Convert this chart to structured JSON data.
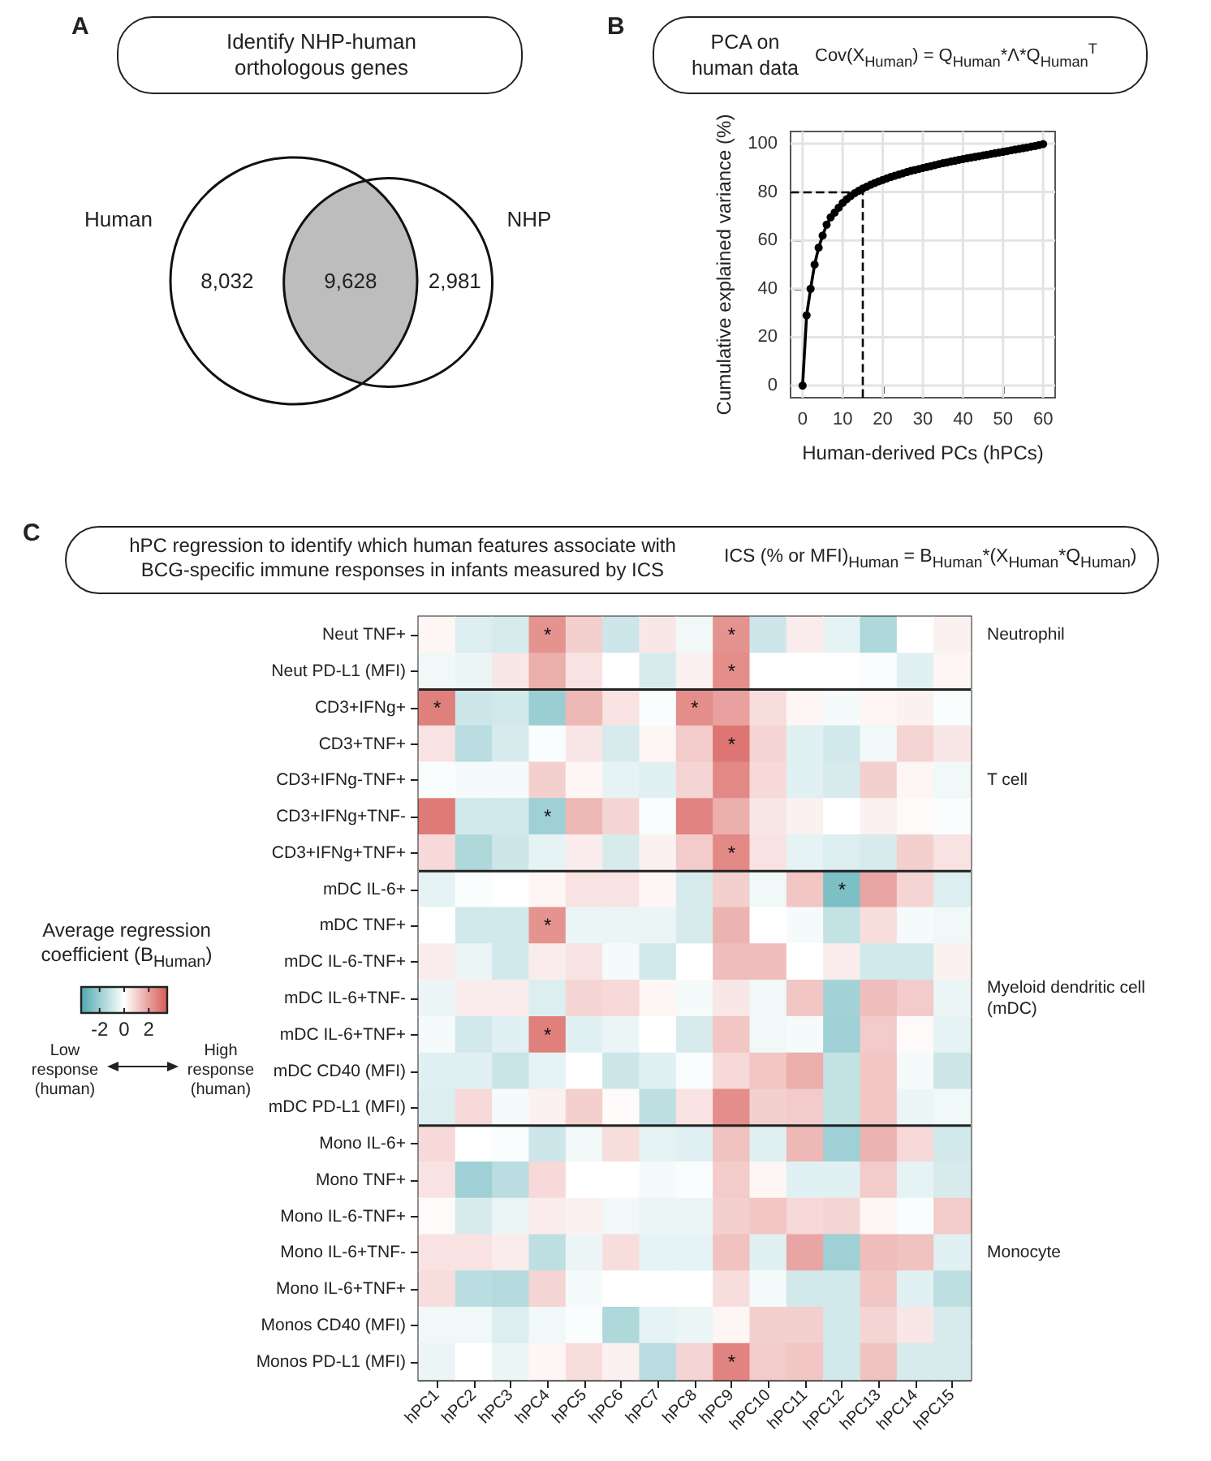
{
  "chart_data": [
    {
      "type": "other",
      "title": "Identify NHP-human orthologous genes",
      "annotations": [
        "A"
      ],
      "categories": [
        "Human",
        null,
        "NHP"
      ],
      "values": [
        8032,
        9628,
        2981
      ],
      "value_labels": [
        "8,032",
        "9,628",
        "2,981"
      ],
      "colors": [
        "#ffffff",
        "#bdbdbd",
        "#ffffff"
      ]
    },
    {
      "type": "line",
      "title": "PCA on human data",
      "subtitle": "Cov(X$_{Human}$) = Q$_{Human}$*Λ*Q$_{Human}$$^{T}$",
      "annotations": [
        "B"
      ],
      "xlabel": "Human-derived PCs (hPCs)",
      "ylabel": "Cumulative explained variance (%)",
      "x": [
        0,
        1,
        2,
        3,
        4,
        5,
        6,
        7,
        8,
        9,
        10,
        11,
        12,
        13,
        14,
        15,
        16,
        17,
        18,
        19,
        20,
        21,
        22,
        23,
        24,
        25,
        26,
        27,
        28,
        29,
        30,
        31,
        32,
        33,
        34,
        35,
        36,
        37,
        38,
        39,
        40,
        41,
        42,
        43,
        44,
        45,
        46,
        47,
        48,
        49,
        50,
        51,
        52,
        53,
        54,
        55,
        56,
        57,
        58,
        59,
        60
      ],
      "series": [
        {
          "color": "#000000",
          "values": [
            0,
            29,
            40,
            50,
            57,
            62,
            66.5,
            69.5,
            71.5,
            73.5,
            75.5,
            77,
            78.3,
            79.5,
            80.5,
            81.4,
            82.2,
            83,
            83.7,
            84.4,
            85,
            85.6,
            86.2,
            86.7,
            87.2,
            87.7,
            88.2,
            88.7,
            89.1,
            89.5,
            89.9,
            90.3,
            90.7,
            91.1,
            91.5,
            91.9,
            92.2,
            92.6,
            92.9,
            93.3,
            93.6,
            93.9,
            94.2,
            94.5,
            94.8,
            95.1,
            95.4,
            95.7,
            96,
            96.3,
            96.6,
            96.9,
            97.2,
            97.5,
            97.8,
            98.1,
            98.4,
            98.7,
            99,
            99.4,
            99.8
          ]
        }
      ],
      "xlim": [
        -3,
        63
      ],
      "ylim": [
        -5,
        105
      ],
      "xticks": [
        0,
        10,
        20,
        30,
        40,
        50,
        60
      ],
      "yticks": [
        0,
        20,
        40,
        60,
        80,
        100
      ],
      "grid": true,
      "marker": "circle",
      "ref_lines": [
        {
          "axis": "x",
          "value": 15,
          "line_style": "dashed"
        },
        {
          "axis": "y",
          "value": 80,
          "line_style": "dashed"
        }
      ]
    },
    {
      "type": "heatmap",
      "title": "hPC regression to identify which human features associate with BCG-specific immune responses in infants measured by ICS",
      "subtitle": "ICS (% or MFI)$_{Human}$ = B$_{Human}$*(X$_{Human}$*Q$_{Human}$)",
      "annotations": [
        "C",
        "Low response (human)",
        "High response (human)"
      ],
      "clabel": "Average regression coefficient (B$_{Human}$)",
      "clim": [
        -3.5,
        3.5
      ],
      "cticks": [
        -2,
        0,
        2
      ],
      "categories": [
        "hPC1",
        "hPC2",
        "hPC3",
        "hPC4",
        "hPC5",
        "hPC6",
        "hPC7",
        "hPC8",
        "hPC9",
        "hPC10",
        "hPC11",
        "hPC12",
        "hPC13",
        "hPC14",
        "hPC15"
      ],
      "y_categories": [
        "Neut TNF+",
        "Neut PD-L1 (MFI)",
        "CD3+IFNg+",
        "CD3+TNF+",
        "CD3+IFNg-TNF+",
        "CD3+IFNg+TNF-",
        "CD3+IFNg+TNF+",
        "mDC IL-6+",
        "mDC TNF+",
        "mDC IL-6-TNF+",
        "mDC IL-6+TNF-",
        "mDC IL-6+TNF+",
        "mDC CD40 (MFI)",
        "mDC PD-L1 (MFI)",
        "Mono IL-6+",
        "Mono TNF+",
        "Mono IL-6-TNF+",
        "Mono IL-6+TNF-",
        "Mono IL-6+TNF+",
        "Monos CD40 (MFI)",
        "Monos PD-L1 (MFI)"
      ],
      "y2_categories": [
        "Neutrophil",
        null,
        null,
        null,
        "T cell",
        null,
        null,
        null,
        null,
        null,
        "Myeloid dendritic cell (mDC)",
        null,
        null,
        null,
        null,
        null,
        null,
        "Monocyte",
        null,
        null,
        null
      ],
      "cells": [
        [
          0.2,
          -0.7,
          -0.8,
          2.3,
          1.0,
          -1.0,
          0.5,
          -0.3,
          2.3,
          -1.0,
          0.4,
          -0.5,
          -1.6,
          0,
          0.3
        ],
        [
          -0.3,
          -0.4,
          0.5,
          1.7,
          0.6,
          0,
          -0.8,
          0.3,
          2.4,
          0,
          0,
          0,
          -0.1,
          -0.6,
          0.2
        ],
        [
          2.7,
          -1.0,
          -0.9,
          -2.0,
          1.5,
          0.6,
          -0.1,
          2.4,
          2.0,
          0.7,
          0.2,
          -0.2,
          0.2,
          0.3,
          -0.1
        ],
        [
          0.6,
          -1.4,
          -0.8,
          -0.1,
          0.5,
          -0.8,
          0.2,
          1.1,
          2.9,
          0.9,
          -0.6,
          -0.9,
          -0.3,
          0.9,
          0.5
        ],
        [
          -0.1,
          -0.2,
          -0.2,
          1.0,
          0.2,
          -0.5,
          -0.6,
          0.9,
          2.5,
          0.8,
          -0.6,
          -0.8,
          1.0,
          0.2,
          -0.3
        ],
        [
          2.8,
          -0.9,
          -0.9,
          -1.9,
          1.5,
          0.9,
          -0.1,
          2.6,
          1.7,
          0.5,
          0.3,
          0,
          0.3,
          0.1,
          -0.1
        ],
        [
          0.8,
          -1.6,
          -1.0,
          -0.5,
          0.4,
          -0.8,
          0.3,
          1.1,
          2.5,
          0.6,
          -0.5,
          -0.7,
          -0.8,
          1.0,
          0.6
        ],
        [
          -0.5,
          -0.1,
          0,
          0.2,
          0.6,
          0.6,
          0.2,
          -0.8,
          1.0,
          -0.3,
          1.2,
          -2.6,
          1.9,
          0.9,
          -0.7
        ],
        [
          0,
          -0.9,
          -0.9,
          2.3,
          -0.4,
          -0.4,
          -0.4,
          -0.8,
          1.6,
          0,
          -0.2,
          -1.2,
          0.7,
          -0.2,
          -0.3
        ],
        [
          0.4,
          -0.4,
          -0.9,
          0.4,
          0.6,
          -0.2,
          -0.9,
          0,
          1.4,
          1.4,
          0,
          0.4,
          -0.9,
          -0.9,
          0.3
        ],
        [
          -0.4,
          0.4,
          0.4,
          -0.7,
          0.9,
          0.8,
          0.2,
          -0.2,
          0.5,
          -0.3,
          1.2,
          -1.8,
          1.4,
          1.1,
          -0.4
        ],
        [
          -0.2,
          -0.9,
          -0.6,
          2.7,
          -0.6,
          -0.4,
          0,
          -0.8,
          1.2,
          -0.3,
          -0.2,
          -1.9,
          1.1,
          0.1,
          -0.5
        ],
        [
          -0.6,
          -0.6,
          -1.1,
          -0.5,
          0,
          -1.0,
          -0.6,
          -0.1,
          0.8,
          1.2,
          1.7,
          -1.2,
          1.2,
          -0.2,
          -1.0
        ],
        [
          -0.7,
          0.8,
          -0.2,
          0.3,
          1.0,
          0.1,
          -1.3,
          0.6,
          2.4,
          1.0,
          1.1,
          -1.2,
          1.2,
          -0.4,
          -0.3
        ],
        [
          0.8,
          0,
          -0.1,
          -1.0,
          -0.3,
          0.7,
          -0.5,
          -0.6,
          1.3,
          -0.6,
          1.5,
          -1.9,
          1.6,
          0.8,
          -0.9
        ],
        [
          0.6,
          -1.9,
          -1.4,
          0.8,
          0,
          0,
          -0.2,
          -0.1,
          1.1,
          0.2,
          -0.6,
          -0.6,
          1.1,
          -0.5,
          -0.8
        ],
        [
          0.1,
          -0.8,
          -0.4,
          0.4,
          0.3,
          -0.3,
          -0.4,
          -0.4,
          1.0,
          1.2,
          0.8,
          0.9,
          0.2,
          -0.1,
          1.1
        ],
        [
          0.6,
          0.6,
          0.4,
          -1.3,
          -0.4,
          0.7,
          -0.5,
          -0.5,
          1.3,
          -0.6,
          1.9,
          -1.9,
          1.4,
          1.3,
          -0.6
        ],
        [
          0.7,
          -1.4,
          -1.5,
          0.9,
          -0.2,
          0,
          0,
          0,
          0.7,
          -0.2,
          -0.9,
          -0.9,
          1.2,
          -0.6,
          -1.3
        ],
        [
          -0.3,
          -0.3,
          -0.7,
          -0.3,
          -0.1,
          -1.6,
          -0.5,
          -0.4,
          0.2,
          1.0,
          1.0,
          -0.9,
          0.9,
          0.5,
          -0.8
        ],
        [
          -0.4,
          0,
          -0.4,
          0.2,
          0.7,
          0.3,
          -1.4,
          0.9,
          2.6,
          1.1,
          1.2,
          -0.9,
          1.3,
          -0.8,
          -0.8
        ]
      ],
      "cell_labels": [
        [
          null,
          null,
          null,
          "*",
          null,
          null,
          null,
          null,
          "*",
          null,
          null,
          null,
          null,
          null,
          null
        ],
        [
          null,
          null,
          null,
          null,
          null,
          null,
          null,
          null,
          "*",
          null,
          null,
          null,
          null,
          null,
          null
        ],
        [
          "*",
          null,
          null,
          null,
          null,
          null,
          null,
          "*",
          null,
          null,
          null,
          null,
          null,
          null,
          null
        ],
        [
          null,
          null,
          null,
          null,
          null,
          null,
          null,
          null,
          "*",
          null,
          null,
          null,
          null,
          null,
          null
        ],
        [
          null,
          null,
          null,
          null,
          null,
          null,
          null,
          null,
          null,
          null,
          null,
          null,
          null,
          null,
          null
        ],
        [
          null,
          null,
          null,
          "*",
          null,
          null,
          null,
          null,
          null,
          null,
          null,
          null,
          null,
          null,
          null
        ],
        [
          null,
          null,
          null,
          null,
          null,
          null,
          null,
          null,
          "*",
          null,
          null,
          null,
          null,
          null,
          null
        ],
        [
          null,
          null,
          null,
          null,
          null,
          null,
          null,
          null,
          null,
          null,
          null,
          "*",
          null,
          null,
          null
        ],
        [
          null,
          null,
          null,
          "*",
          null,
          null,
          null,
          null,
          null,
          null,
          null,
          null,
          null,
          null,
          null
        ],
        [
          null,
          null,
          null,
          null,
          null,
          null,
          null,
          null,
          null,
          null,
          null,
          null,
          null,
          null,
          null
        ],
        [
          null,
          null,
          null,
          null,
          null,
          null,
          null,
          null,
          null,
          null,
          null,
          null,
          null,
          null,
          null
        ],
        [
          null,
          null,
          null,
          "*",
          null,
          null,
          null,
          null,
          null,
          null,
          null,
          null,
          null,
          null,
          null
        ],
        [
          null,
          null,
          null,
          null,
          null,
          null,
          null,
          null,
          null,
          null,
          null,
          null,
          null,
          null,
          null
        ],
        [
          null,
          null,
          null,
          null,
          null,
          null,
          null,
          null,
          null,
          null,
          null,
          null,
          null,
          null,
          null
        ],
        [
          null,
          null,
          null,
          null,
          null,
          null,
          null,
          null,
          null,
          null,
          null,
          null,
          null,
          null,
          null
        ],
        [
          null,
          null,
          null,
          null,
          null,
          null,
          null,
          null,
          null,
          null,
          null,
          null,
          null,
          null,
          null
        ],
        [
          null,
          null,
          null,
          null,
          null,
          null,
          null,
          null,
          null,
          null,
          null,
          null,
          null,
          null,
          null
        ],
        [
          null,
          null,
          null,
          null,
          null,
          null,
          null,
          null,
          null,
          null,
          null,
          null,
          null,
          null,
          null
        ],
        [
          null,
          null,
          null,
          null,
          null,
          null,
          null,
          null,
          null,
          null,
          null,
          null,
          null,
          null,
          null
        ],
        [
          null,
          null,
          null,
          null,
          null,
          null,
          null,
          null,
          null,
          null,
          null,
          null,
          null,
          null,
          null
        ],
        [
          null,
          null,
          null,
          null,
          null,
          null,
          null,
          null,
          "*",
          null,
          null,
          null,
          null,
          null,
          null
        ]
      ]
    }
  ]
}
